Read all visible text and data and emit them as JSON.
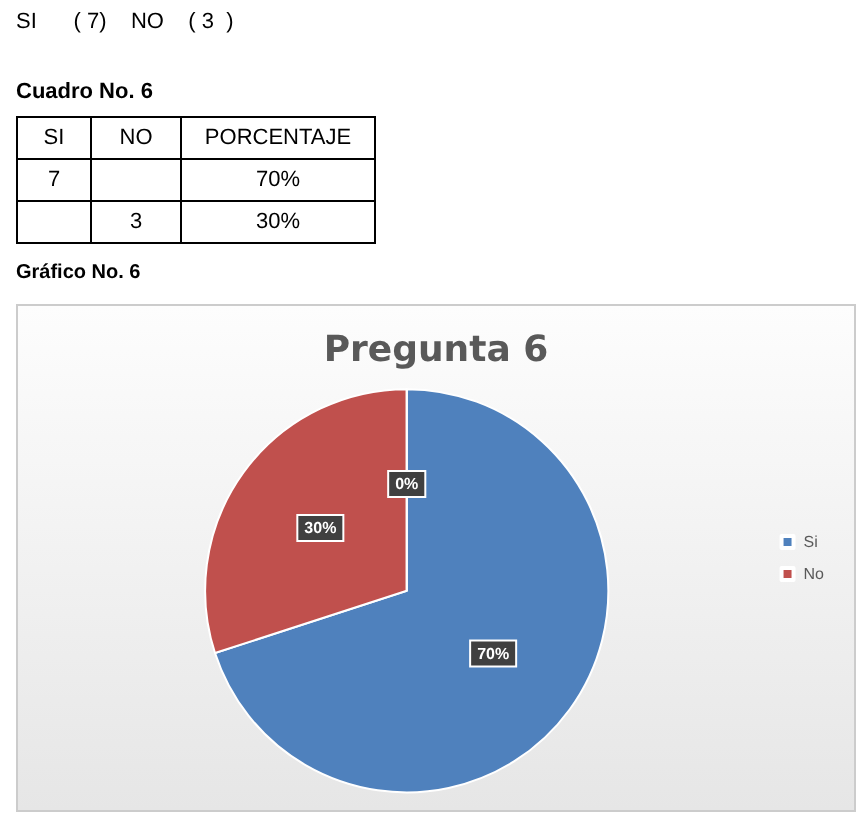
{
  "chart_data": [
    {
      "type": "other",
      "annotations": [
        "SI      ( 7)    NO    ( 3  )"
      ],
      "title": "Cuadro No. 6",
      "categories": [
        "SI",
        "NO",
        "PORCENTAJE"
      ],
      "cell_labels": [
        [
          "7",
          null,
          "70%"
        ],
        [
          null,
          "3",
          "30%"
        ]
      ]
    },
    {
      "type": "pie",
      "title": "Pregunta 6",
      "annotations": [
        "Gráfico No. 6"
      ],
      "categories": [
        "Si",
        "No",
        null
      ],
      "values": [
        70,
        30,
        0
      ],
      "colors": [
        "#4f81bd",
        "#c0504d",
        "#9bbb59"
      ],
      "value_labels": [
        "70%",
        "30%",
        "0%"
      ],
      "legend": "right"
    }
  ]
}
